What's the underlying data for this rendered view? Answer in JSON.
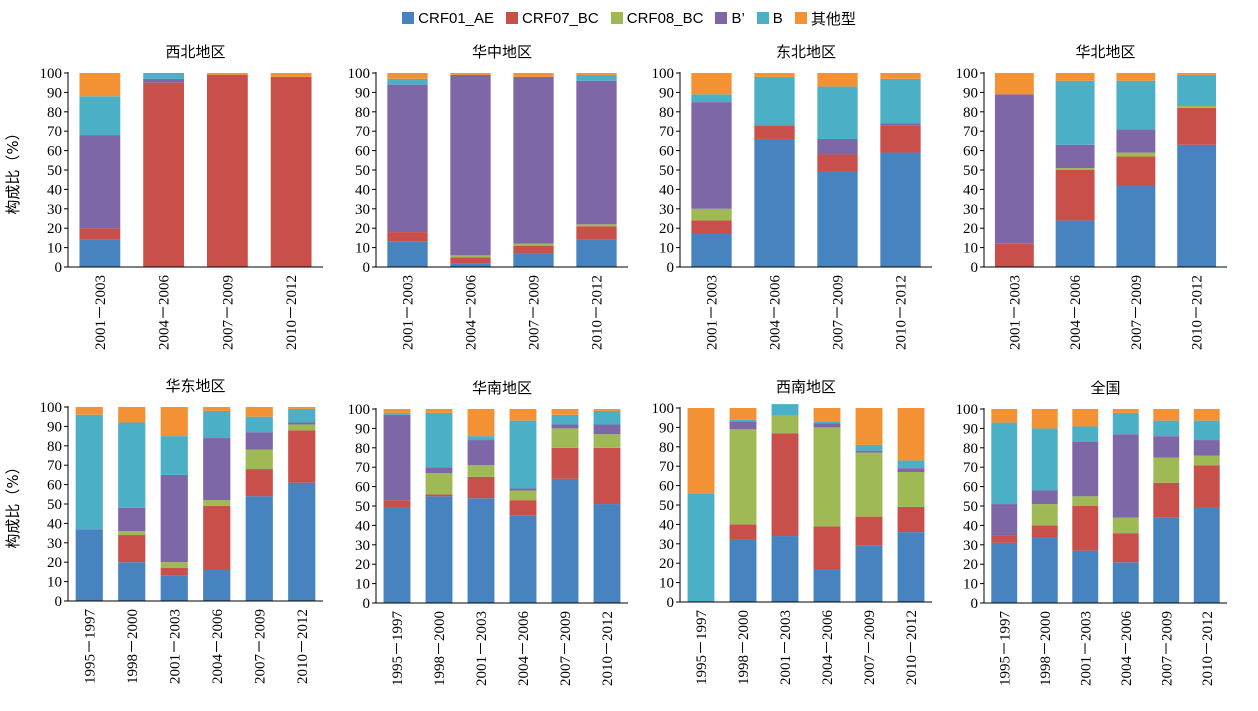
{
  "legend": [
    {
      "name": "CRF01_AE",
      "color": "#4683bf"
    },
    {
      "name": "CRF07_BC",
      "color": "#c94f4b"
    },
    {
      "name": "CRF08_BC",
      "color": "#9fba54"
    },
    {
      "name": "B’",
      "color": "#7e67a6"
    },
    {
      "name": "B",
      "color": "#4bafc6"
    },
    {
      "name": "其他型",
      "color": "#f39235"
    }
  ],
  "chart_data": [
    {
      "type": "bar",
      "stacked": true,
      "title": "西北地区",
      "ylabel": "构成比（%）",
      "ylim": [
        0,
        100
      ],
      "yticks": [
        0,
        10,
        20,
        30,
        40,
        50,
        60,
        70,
        80,
        90,
        100
      ],
      "categories": [
        "2001－2003",
        "2004－2006",
        "2007－2009",
        "2010－2012"
      ],
      "series": [
        {
          "name": "CRF01_AE",
          "values": [
            14,
            0,
            0,
            0
          ]
        },
        {
          "name": "CRF07_BC",
          "values": [
            6,
            95,
            99,
            98
          ]
        },
        {
          "name": "CRF08_BC",
          "values": [
            0,
            0,
            0,
            0
          ]
        },
        {
          "name": "B’",
          "values": [
            48,
            2,
            0,
            0
          ]
        },
        {
          "name": "B",
          "values": [
            20,
            3,
            0,
            0
          ]
        },
        {
          "name": "其他型",
          "values": [
            12,
            0,
            1,
            2
          ]
        }
      ]
    },
    {
      "type": "bar",
      "stacked": true,
      "title": "华中地区",
      "ylabel": "",
      "ylim": [
        0,
        100
      ],
      "yticks": [
        0,
        10,
        20,
        30,
        40,
        50,
        60,
        70,
        80,
        90,
        100
      ],
      "categories": [
        "2001－2003",
        "2004－2006",
        "2007－2009",
        "2010－2012"
      ],
      "series": [
        {
          "name": "CRF01_AE",
          "values": [
            13,
            2,
            7,
            14
          ]
        },
        {
          "name": "CRF07_BC",
          "values": [
            5,
            3,
            4,
            7
          ]
        },
        {
          "name": "CRF08_BC",
          "values": [
            0,
            1,
            1,
            1
          ]
        },
        {
          "name": "B’",
          "values": [
            76,
            93,
            86,
            74
          ]
        },
        {
          "name": "B",
          "values": [
            3,
            0,
            0,
            3
          ]
        },
        {
          "name": "其他型",
          "values": [
            3,
            1,
            2,
            1
          ]
        }
      ]
    },
    {
      "type": "bar",
      "stacked": true,
      "title": "东北地区",
      "ylabel": "",
      "ylim": [
        0,
        100
      ],
      "yticks": [
        0,
        10,
        20,
        30,
        40,
        50,
        60,
        70,
        80,
        90,
        100
      ],
      "categories": [
        "2001－2003",
        "2004－2006",
        "2007－2009",
        "2010－2012"
      ],
      "series": [
        {
          "name": "CRF01_AE",
          "values": [
            17,
            66,
            49,
            59
          ]
        },
        {
          "name": "CRF07_BC",
          "values": [
            7,
            7,
            9,
            14
          ]
        },
        {
          "name": "CRF08_BC",
          "values": [
            6,
            0,
            0,
            0
          ]
        },
        {
          "name": "B’",
          "values": [
            55,
            0,
            8,
            1
          ]
        },
        {
          "name": "B",
          "values": [
            4,
            25,
            27,
            23
          ]
        },
        {
          "name": "其他型",
          "values": [
            11,
            2,
            7,
            3
          ]
        }
      ]
    },
    {
      "type": "bar",
      "stacked": true,
      "title": "华北地区",
      "ylabel": "",
      "ylim": [
        0,
        100
      ],
      "yticks": [
        0,
        10,
        20,
        30,
        40,
        50,
        60,
        70,
        80,
        90,
        100
      ],
      "categories": [
        "2001－2003",
        "2004－2006",
        "2007－2009",
        "2010－2012"
      ],
      "series": [
        {
          "name": "CRF01_AE",
          "values": [
            0,
            24,
            42,
            63
          ]
        },
        {
          "name": "CRF07_BC",
          "values": [
            12,
            26,
            15,
            19
          ]
        },
        {
          "name": "CRF08_BC",
          "values": [
            0,
            1,
            2,
            1
          ]
        },
        {
          "name": "B’",
          "values": [
            77,
            12,
            12,
            0
          ]
        },
        {
          "name": "B",
          "values": [
            0,
            33,
            25,
            16
          ]
        },
        {
          "name": "其他型",
          "values": [
            11,
            4,
            4,
            1
          ]
        }
      ]
    },
    {
      "type": "bar",
      "stacked": true,
      "title": "华东地区",
      "ylabel": "构成比（%）",
      "ylim": [
        0,
        100
      ],
      "yticks": [
        0,
        10,
        20,
        30,
        40,
        50,
        60,
        70,
        80,
        90,
        100
      ],
      "categories": [
        "1995－1997",
        "1998－2000",
        "2001－2003",
        "2004－2006",
        "2007－2009",
        "2010－2012"
      ],
      "series": [
        {
          "name": "CRF01_AE",
          "values": [
            37,
            20,
            13,
            16,
            54,
            61
          ]
        },
        {
          "name": "CRF07_BC",
          "values": [
            0,
            14,
            4,
            33,
            14,
            27
          ]
        },
        {
          "name": "CRF08_BC",
          "values": [
            0,
            2,
            3,
            3,
            10,
            3
          ]
        },
        {
          "name": "B’",
          "values": [
            0,
            12,
            45,
            32,
            9,
            1
          ]
        },
        {
          "name": "B",
          "values": [
            59,
            44,
            20,
            14,
            8,
            7
          ]
        },
        {
          "name": "其他型",
          "values": [
            4,
            8,
            15,
            2,
            5,
            1
          ]
        }
      ]
    },
    {
      "type": "bar",
      "stacked": true,
      "title": "华南地区",
      "ylabel": "",
      "ylim": [
        0,
        100
      ],
      "yticks": [
        0,
        10,
        20,
        30,
        40,
        50,
        60,
        70,
        80,
        90,
        100
      ],
      "categories": [
        "1995－1997",
        "1998－2000",
        "2001－2003",
        "2004－2006",
        "2007－2009",
        "2010－2012"
      ],
      "series": [
        {
          "name": "CRF01_AE",
          "values": [
            49,
            55,
            54,
            45,
            64,
            51
          ]
        },
        {
          "name": "CRF07_BC",
          "values": [
            4,
            1,
            11,
            8,
            16,
            29
          ]
        },
        {
          "name": "CRF08_BC",
          "values": [
            0,
            11,
            6,
            5,
            10,
            7
          ]
        },
        {
          "name": "B’",
          "values": [
            44,
            3,
            13,
            1,
            2,
            5
          ]
        },
        {
          "name": "B",
          "values": [
            1,
            28,
            2,
            35,
            5,
            7
          ]
        },
        {
          "name": "其他型",
          "values": [
            2,
            2,
            14,
            6,
            3,
            1
          ]
        }
      ]
    },
    {
      "type": "bar",
      "stacked": true,
      "title": "西南地区",
      "ylabel": "",
      "ylim": [
        0,
        100
      ],
      "yticks": [
        0,
        10,
        20,
        30,
        40,
        50,
        60,
        70,
        80,
        90,
        100
      ],
      "categories": [
        "1995－1997",
        "1998－2000",
        "2001－2003",
        "2004－2006",
        "2007－2009",
        "2010－2012"
      ],
      "series": [
        {
          "name": "CRF01_AE",
          "values": [
            0,
            32,
            34,
            17,
            29,
            36
          ]
        },
        {
          "name": "CRF07_BC",
          "values": [
            0,
            8,
            53,
            22,
            15,
            13
          ]
        },
        {
          "name": "CRF08_BC",
          "values": [
            0,
            49,
            9,
            51,
            33,
            18
          ]
        },
        {
          "name": "B’",
          "values": [
            0,
            4,
            0,
            2,
            1,
            2
          ]
        },
        {
          "name": "B",
          "values": [
            56,
            1,
            6,
            1,
            3,
            4
          ]
        },
        {
          "name": "其他型",
          "values": [
            44,
            6,
            0,
            7,
            19,
            27
          ]
        }
      ]
    },
    {
      "type": "bar",
      "stacked": true,
      "title": "全国",
      "ylabel": "",
      "ylim": [
        0,
        100
      ],
      "yticks": [
        0,
        10,
        20,
        30,
        40,
        50,
        60,
        70,
        80,
        90,
        100
      ],
      "categories": [
        "1995－1997",
        "1998－2000",
        "2001－2003",
        "2004－2006",
        "2007－2009",
        "2010－2012"
      ],
      "series": [
        {
          "name": "CRF01_AE",
          "values": [
            31,
            34,
            27,
            21,
            44,
            49
          ]
        },
        {
          "name": "CRF07_BC",
          "values": [
            4,
            6,
            23,
            15,
            18,
            22
          ]
        },
        {
          "name": "CRF08_BC",
          "values": [
            0,
            11,
            5,
            8,
            13,
            5
          ]
        },
        {
          "name": "B’",
          "values": [
            16,
            7,
            28,
            43,
            11,
            8
          ]
        },
        {
          "name": "B",
          "values": [
            42,
            32,
            8,
            11,
            8,
            10
          ]
        },
        {
          "name": "其他型",
          "values": [
            7,
            10,
            9,
            2,
            6,
            6
          ]
        }
      ]
    }
  ]
}
